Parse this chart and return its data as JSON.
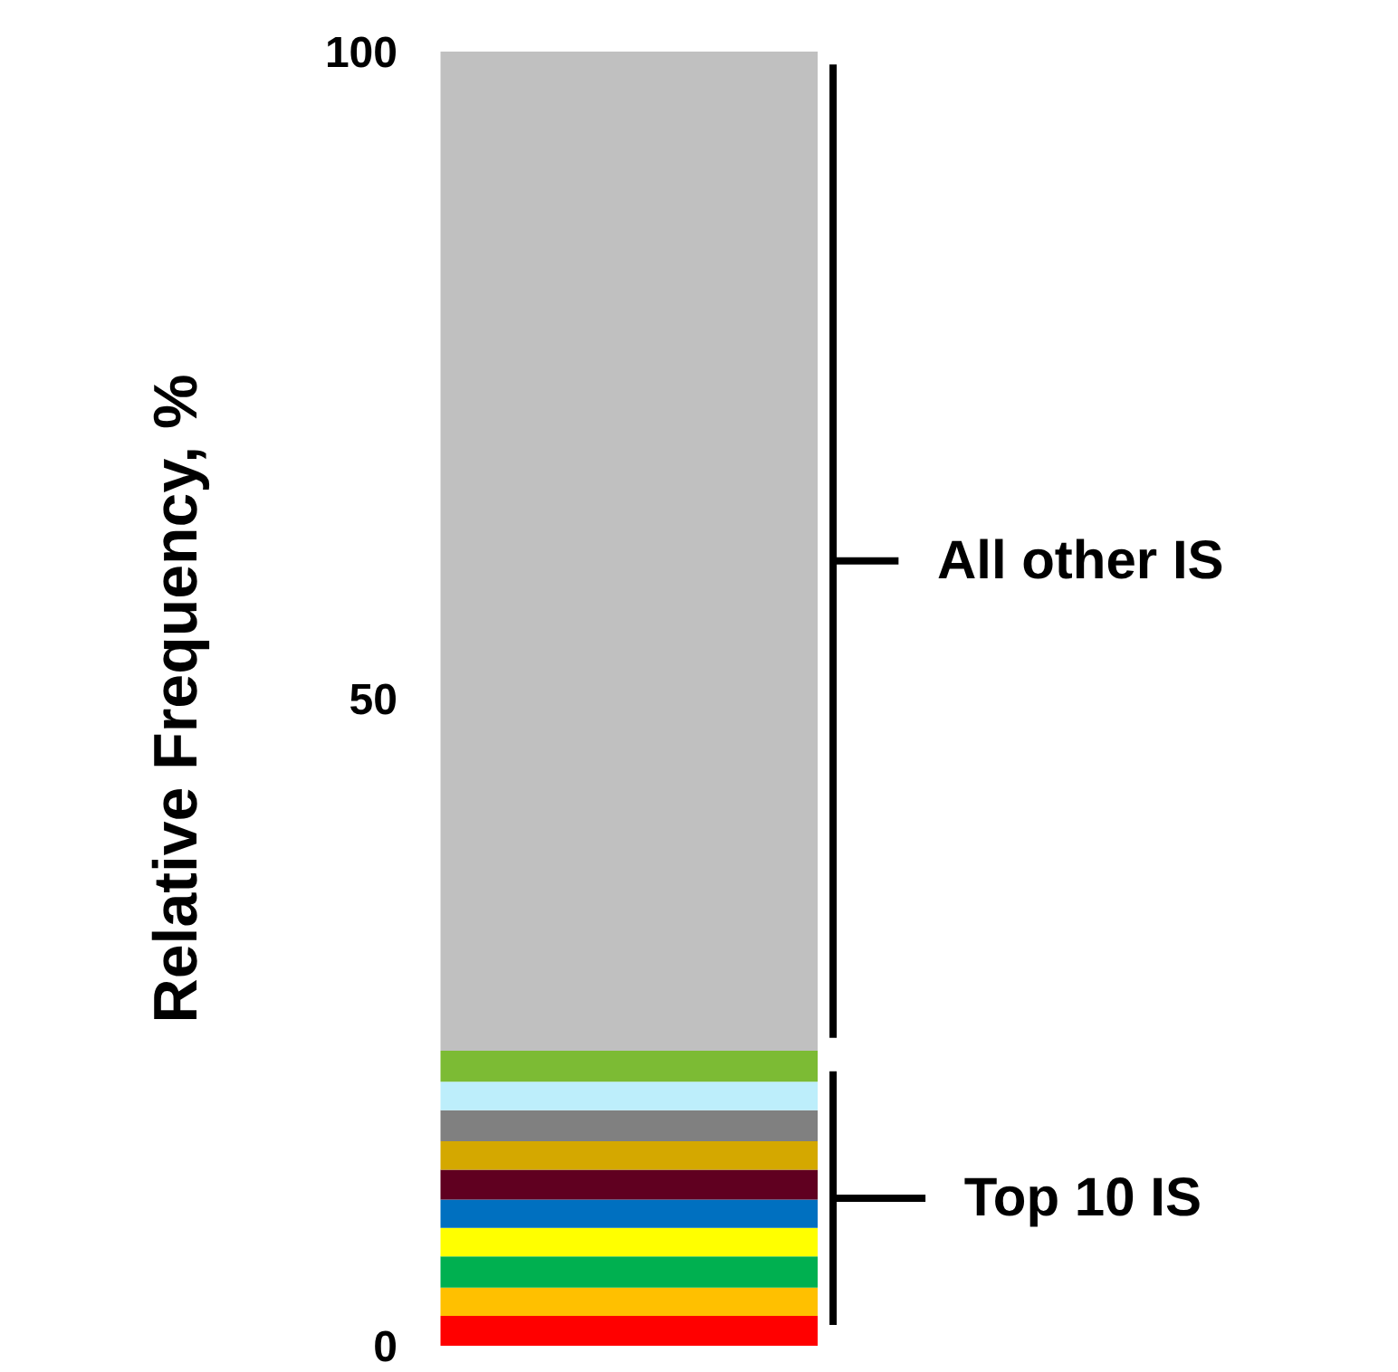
{
  "chart_data": {
    "type": "bar",
    "stacked": true,
    "ylabel": "Relative Frequency, %",
    "categories": [
      null
    ],
    "series": [
      {
        "color": "#ff0000",
        "values": [
          2.3
        ]
      },
      {
        "color": "#ffc000",
        "values": [
          2.2
        ]
      },
      {
        "color": "#00b050",
        "values": [
          2.4
        ]
      },
      {
        "color": "#ffff00",
        "values": [
          2.2
        ]
      },
      {
        "color": "#0070c0",
        "values": [
          2.2
        ]
      },
      {
        "color": "#600020",
        "values": [
          2.3
        ]
      },
      {
        "color": "#d4a800",
        "values": [
          2.2
        ]
      },
      {
        "color": "#808080",
        "values": [
          2.4
        ]
      },
      {
        "color": "#bdeefb",
        "values": [
          2.2
        ]
      },
      {
        "color": "#7cbb34",
        "values": [
          2.4
        ]
      },
      {
        "color": "#c0c0c0",
        "values": [
          77.2
        ]
      }
    ],
    "ylim": [
      0,
      100
    ],
    "yticks": [
      0,
      50,
      100
    ],
    "grid": false,
    "tick_labels": "y",
    "annotations": [
      "All other IS",
      "Top 10 IS"
    ]
  }
}
